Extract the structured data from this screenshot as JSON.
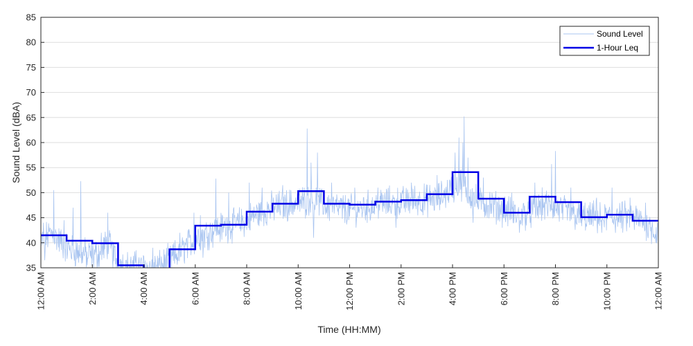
{
  "chart_data": {
    "type": "line",
    "title": "",
    "xlabel": "Time (HH:MM)",
    "ylabel": "Sound Level (dBA)",
    "ylim": [
      35,
      85
    ],
    "xlim": [
      0,
      24
    ],
    "y_ticks": [
      "35",
      "40",
      "45",
      "50",
      "55",
      "60",
      "65",
      "70",
      "75",
      "80",
      "85"
    ],
    "x_ticks": [
      {
        "hour": 0,
        "label": "12:00 AM"
      },
      {
        "hour": 2,
        "label": "2:00 AM"
      },
      {
        "hour": 4,
        "label": "4:00 AM"
      },
      {
        "hour": 6,
        "label": "6:00 AM"
      },
      {
        "hour": 8,
        "label": "8:00 AM"
      },
      {
        "hour": 10,
        "label": "10:00 AM"
      },
      {
        "hour": 12,
        "label": "12:00 PM"
      },
      {
        "hour": 14,
        "label": "2:00 PM"
      },
      {
        "hour": 16,
        "label": "4:00 PM"
      },
      {
        "hour": 18,
        "label": "6:00 PM"
      },
      {
        "hour": 20,
        "label": "8:00 PM"
      },
      {
        "hour": 22,
        "label": "10:00 PM"
      },
      {
        "hour": 24,
        "label": "12:00 AM"
      }
    ],
    "grid": "horizontal",
    "legend_position": "top-right",
    "series": [
      {
        "name": "Sound Level",
        "style": "thin",
        "color": "#a8c4f0",
        "profile_hours": [
          0,
          0.2,
          0.4,
          1,
          1.5,
          2,
          2.3,
          2.6,
          3,
          3.5,
          4,
          4.5,
          5,
          5.5,
          6,
          6.5,
          7,
          7.5,
          8,
          8.5,
          9,
          9.5,
          10,
          10.5,
          11,
          11.5,
          12,
          12.5,
          13,
          13.5,
          14,
          14.5,
          15,
          15.5,
          16,
          16.3,
          16.6,
          17,
          17.5,
          18,
          18.5,
          19,
          19.5,
          20,
          20.5,
          21,
          21.5,
          22,
          22.5,
          23,
          23.5,
          24
        ],
        "profile_values": [
          40,
          41,
          42,
          39,
          38,
          37.5,
          38,
          40,
          36,
          35,
          35,
          35,
          36.5,
          38.5,
          41,
          42,
          43,
          43.5,
          44.5,
          46,
          47,
          47.5,
          48,
          48.5,
          47.5,
          47,
          46.5,
          47,
          47.5,
          48,
          48,
          48.5,
          48.5,
          49,
          51,
          52,
          50,
          48,
          47.5,
          46.5,
          45.5,
          46,
          47.5,
          47,
          46,
          45,
          45,
          45,
          45,
          45,
          44,
          42
        ],
        "spikes": [
          {
            "hour": 0.1,
            "value": 44
          },
          {
            "hour": 0.5,
            "value": 50.5
          },
          {
            "hour": 0.9,
            "value": 44.5
          },
          {
            "hour": 1.25,
            "value": 47
          },
          {
            "hour": 1.55,
            "value": 52.3
          },
          {
            "hour": 2.6,
            "value": 46
          },
          {
            "hour": 2.35,
            "value": 42
          },
          {
            "hour": 3.7,
            "value": 38.5
          },
          {
            "hour": 4.35,
            "value": 39
          },
          {
            "hour": 5.4,
            "value": 42
          },
          {
            "hour": 5.95,
            "value": 46
          },
          {
            "hour": 6.2,
            "value": 45.5
          },
          {
            "hour": 6.8,
            "value": 52.8
          },
          {
            "hour": 7.3,
            "value": 50
          },
          {
            "hour": 8.1,
            "value": 52
          },
          {
            "hour": 8.6,
            "value": 51
          },
          {
            "hour": 9.4,
            "value": 51.5
          },
          {
            "hour": 10.35,
            "value": 62.8
          },
          {
            "hour": 10.5,
            "value": 56
          },
          {
            "hour": 10.75,
            "value": 58
          },
          {
            "hour": 11.3,
            "value": 52
          },
          {
            "hour": 12.2,
            "value": 51
          },
          {
            "hour": 13.1,
            "value": 51
          },
          {
            "hour": 14.4,
            "value": 52
          },
          {
            "hour": 15.4,
            "value": 53.5
          },
          {
            "hour": 16.1,
            "value": 58
          },
          {
            "hour": 16.25,
            "value": 61
          },
          {
            "hour": 16.4,
            "value": 60
          },
          {
            "hour": 16.45,
            "value": 65.2
          },
          {
            "hour": 16.6,
            "value": 57
          },
          {
            "hour": 17.2,
            "value": 53
          },
          {
            "hour": 18.3,
            "value": 50
          },
          {
            "hour": 19.2,
            "value": 52
          },
          {
            "hour": 19.85,
            "value": 55.7
          },
          {
            "hour": 20.0,
            "value": 58.3
          },
          {
            "hour": 20.6,
            "value": 51
          },
          {
            "hour": 21.6,
            "value": 49
          },
          {
            "hour": 22.2,
            "value": 51
          },
          {
            "hour": 22.9,
            "value": 49
          },
          {
            "hour": 23.5,
            "value": 48
          }
        ],
        "dips": [
          {
            "hour": 0.15,
            "value": 36.5
          },
          {
            "hour": 1.8,
            "value": 35.5
          },
          {
            "hour": 2.8,
            "value": 35
          },
          {
            "hour": 6.3,
            "value": 37
          },
          {
            "hour": 10.6,
            "value": 41
          },
          {
            "hour": 13.8,
            "value": 43
          },
          {
            "hour": 16.8,
            "value": 44
          },
          {
            "hour": 18.6,
            "value": 42
          },
          {
            "hour": 21.8,
            "value": 42
          },
          {
            "hour": 23.9,
            "value": 40
          }
        ]
      },
      {
        "name": "1-Hour Leq",
        "style": "step",
        "color": "#0000e6",
        "hours": [
          0,
          1,
          2,
          3,
          4,
          5,
          6,
          7,
          8,
          9,
          10,
          11,
          12,
          13,
          14,
          15,
          16,
          17,
          18,
          19,
          20,
          21,
          22,
          23
        ],
        "values": [
          41.5,
          40.4,
          39.9,
          35.5,
          34.6,
          38.7,
          43.4,
          43.6,
          46.2,
          47.8,
          50.3,
          47.8,
          47.6,
          48.2,
          48.5,
          49.7,
          54.1,
          48.8,
          46,
          49.2,
          48.1,
          45.1,
          45.6,
          44.4
        ]
      }
    ]
  }
}
